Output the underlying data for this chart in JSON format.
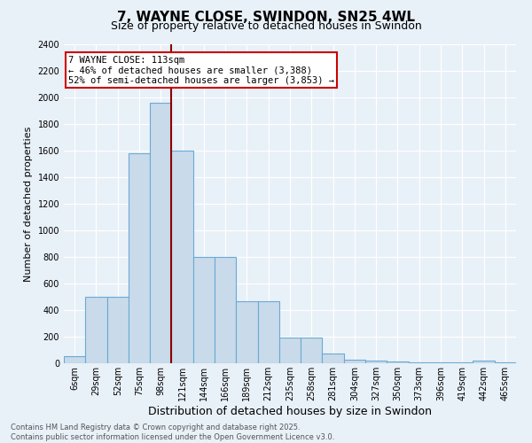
{
  "title": "7, WAYNE CLOSE, SWINDON, SN25 4WL",
  "subtitle": "Size of property relative to detached houses in Swindon",
  "xlabel": "Distribution of detached houses by size in Swindon",
  "ylabel": "Number of detached properties",
  "footer_line1": "Contains HM Land Registry data © Crown copyright and database right 2025.",
  "footer_line2": "Contains public sector information licensed under the Open Government Licence v3.0.",
  "categories": [
    "6sqm",
    "29sqm",
    "52sqm",
    "75sqm",
    "98sqm",
    "121sqm",
    "144sqm",
    "166sqm",
    "189sqm",
    "212sqm",
    "235sqm",
    "258sqm",
    "281sqm",
    "304sqm",
    "327sqm",
    "350sqm",
    "373sqm",
    "396sqm",
    "419sqm",
    "442sqm",
    "465sqm"
  ],
  "values": [
    55,
    500,
    500,
    1580,
    1960,
    1600,
    800,
    800,
    470,
    470,
    195,
    195,
    75,
    30,
    20,
    15,
    10,
    5,
    5,
    20,
    5
  ],
  "bar_color": "#c9daea",
  "bar_edge_color": "#6aaad4",
  "background_color": "#e8f0f8",
  "grid_color": "#d0d8e8",
  "vline_x_index": 4.5,
  "vline_color": "#8b0000",
  "annotation_text": "7 WAYNE CLOSE: 113sqm\n← 46% of detached houses are smaller (3,388)\n52% of semi-detached houses are larger (3,853) →",
  "annotation_box_color": "#ffffff",
  "annotation_box_edge_color": "#cc0000",
  "annotation_fontsize": 7.5,
  "ylim": [
    0,
    2400
  ],
  "yticks": [
    0,
    200,
    400,
    600,
    800,
    1000,
    1200,
    1400,
    1600,
    1800,
    2000,
    2200,
    2400
  ],
  "title_fontsize": 11,
  "subtitle_fontsize": 9,
  "xlabel_fontsize": 9,
  "ylabel_fontsize": 8,
  "tick_fontsize": 7
}
